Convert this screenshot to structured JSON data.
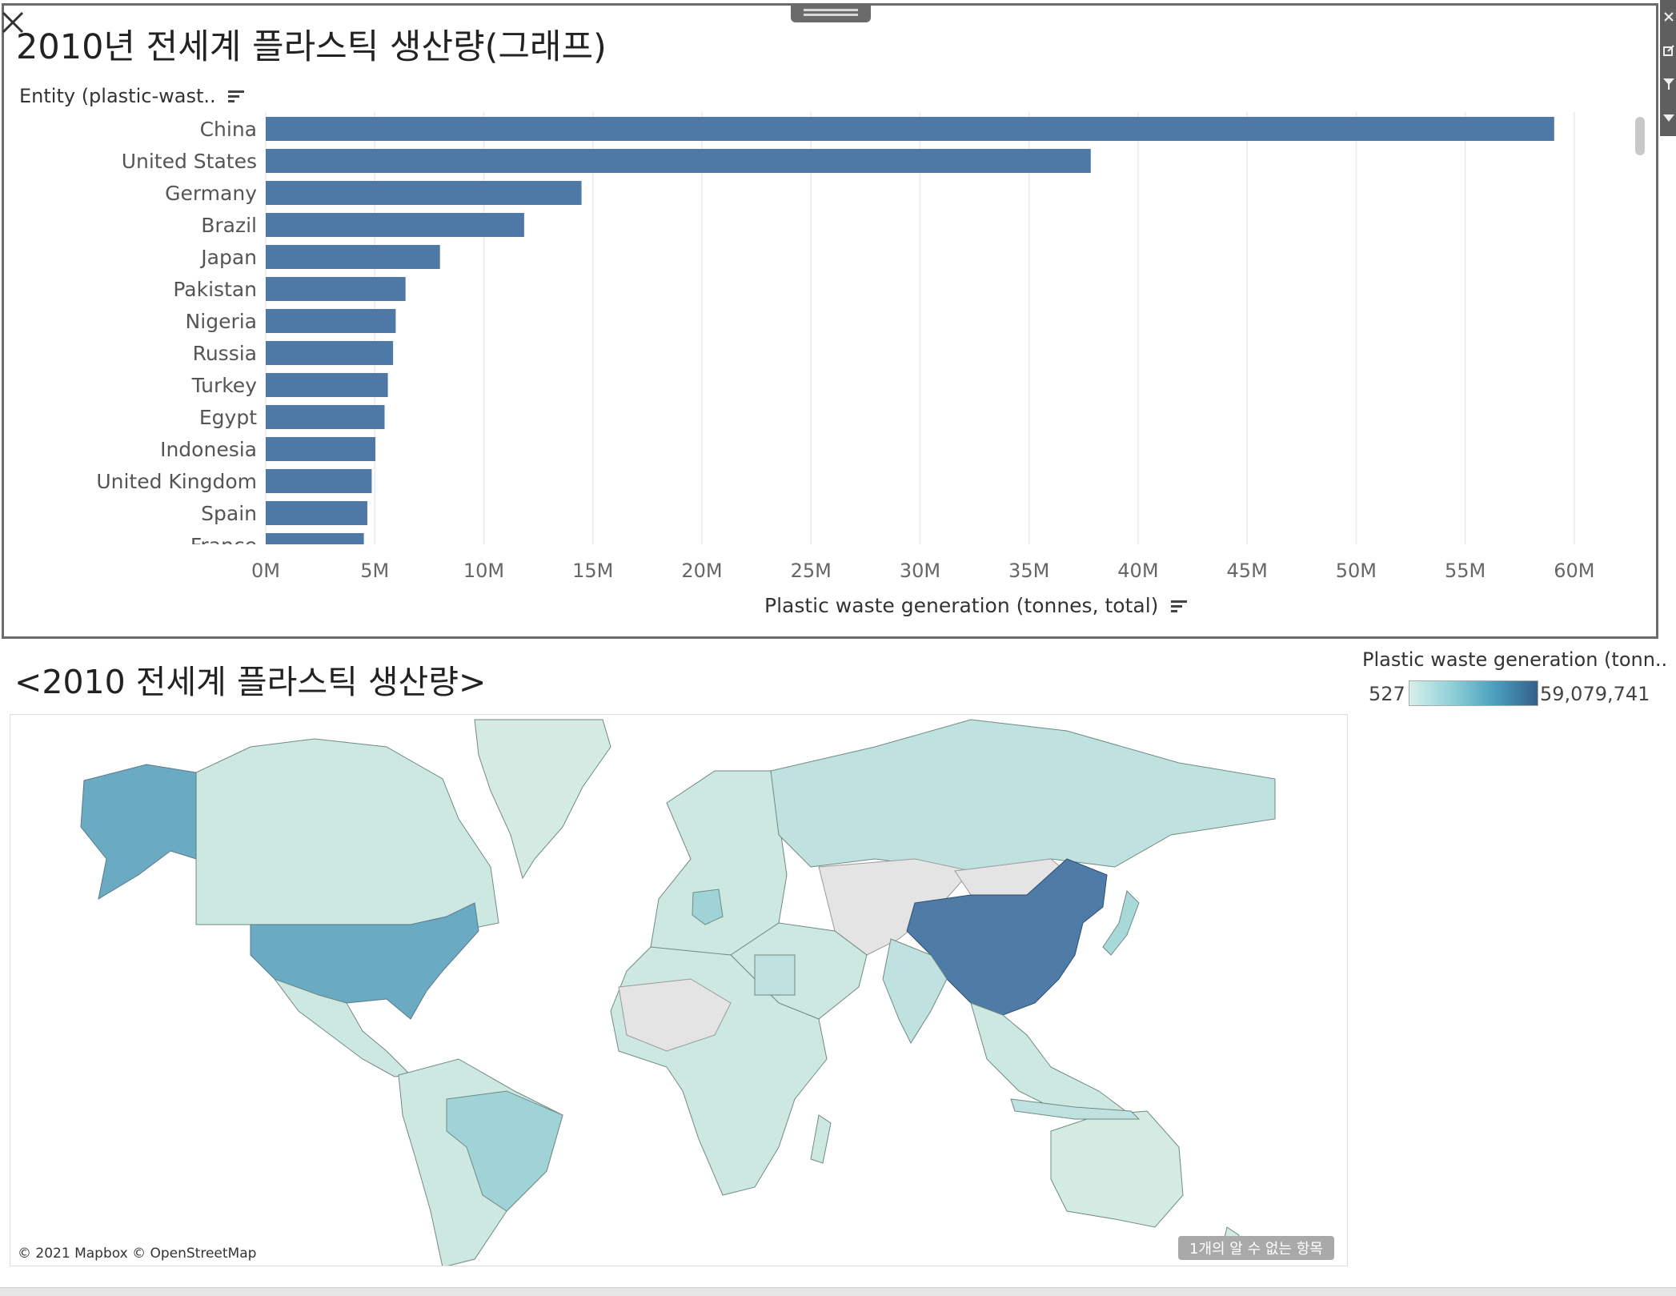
{
  "chart_title": "2010년 전세계 플라스틱 생산량(그래프)",
  "entity_header": "Entity (plastic-wast..",
  "colors": {
    "bar": "#4e79a7",
    "panel_border": "#6b6b6b",
    "gridline": "#ebebeb"
  },
  "chart_data": {
    "type": "bar",
    "orientation": "horizontal",
    "title": "2010년 전세계 플라스틱 생산량(그래프)",
    "ylabel": "Entity (plastic-wast..",
    "xlabel": "Plastic waste generation (tonnes, total)",
    "categories": [
      "China",
      "United States",
      "Germany",
      "Brazil",
      "Japan",
      "Pakistan",
      "Nigeria",
      "Russia",
      "Turkey",
      "Egypt",
      "Indonesia",
      "United Kingdom",
      "Spain",
      "France"
    ],
    "values": [
      59079741,
      37830000,
      14480000,
      11850000,
      7990000,
      6410000,
      5960000,
      5840000,
      5600000,
      5450000,
      5030000,
      4860000,
      4660000,
      4500000
    ],
    "xlim": [
      0,
      62500000
    ],
    "xticks": [
      0,
      5000000,
      10000000,
      15000000,
      20000000,
      25000000,
      30000000,
      35000000,
      40000000,
      45000000,
      50000000,
      55000000,
      60000000
    ],
    "xtick_labels": [
      "0M",
      "5M",
      "10M",
      "15M",
      "20M",
      "25M",
      "30M",
      "35M",
      "40M",
      "45M",
      "50M",
      "55M",
      "60M"
    ],
    "grid": "vertical"
  },
  "map": {
    "title": "<2010 전세계 플라스틱 생산량>",
    "legend_title": "Plastic waste generation (tonn..",
    "legend_min": "527",
    "legend_max": "59,079,741",
    "credit": "© 2021 Mapbox © OpenStreetMap",
    "unknown_badge": "1개의 알 수 없는 항목"
  }
}
